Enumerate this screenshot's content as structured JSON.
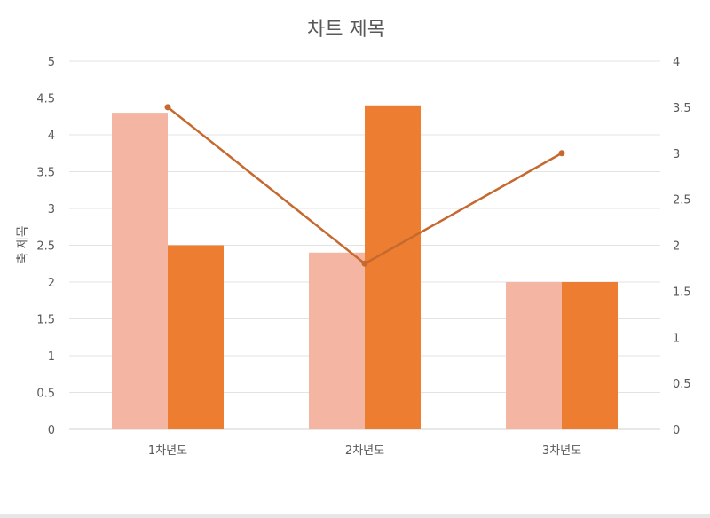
{
  "chart_data": {
    "type": "bar",
    "title": "차트 제목",
    "ylabel": "축 제목",
    "xlabel": "",
    "categories": [
      "1차년도",
      "2차년도",
      "3차년도"
    ],
    "ylim": [
      0,
      5
    ],
    "y_ticks": [
      "0",
      "0.5",
      "1",
      "1.5",
      "2",
      "2.5",
      "3",
      "3.5",
      "4",
      "4.5",
      "5"
    ],
    "y2lim": [
      0,
      4
    ],
    "y2_ticks": [
      "0",
      "0.5",
      "1",
      "1.5",
      "2",
      "2.5",
      "3",
      "3.5",
      "4"
    ],
    "grid": true,
    "legend": "none",
    "series": [
      {
        "type": "bar",
        "axis": "left",
        "color": "#f4b6a2",
        "values": [
          4.3,
          2.4,
          2.0
        ]
      },
      {
        "type": "bar",
        "axis": "left",
        "color": "#ed7d31",
        "values": [
          2.5,
          4.4,
          2.0
        ]
      },
      {
        "type": "line",
        "axis": "right",
        "color": "#c5692f",
        "values": [
          3.5,
          1.8,
          3.0
        ]
      }
    ]
  }
}
